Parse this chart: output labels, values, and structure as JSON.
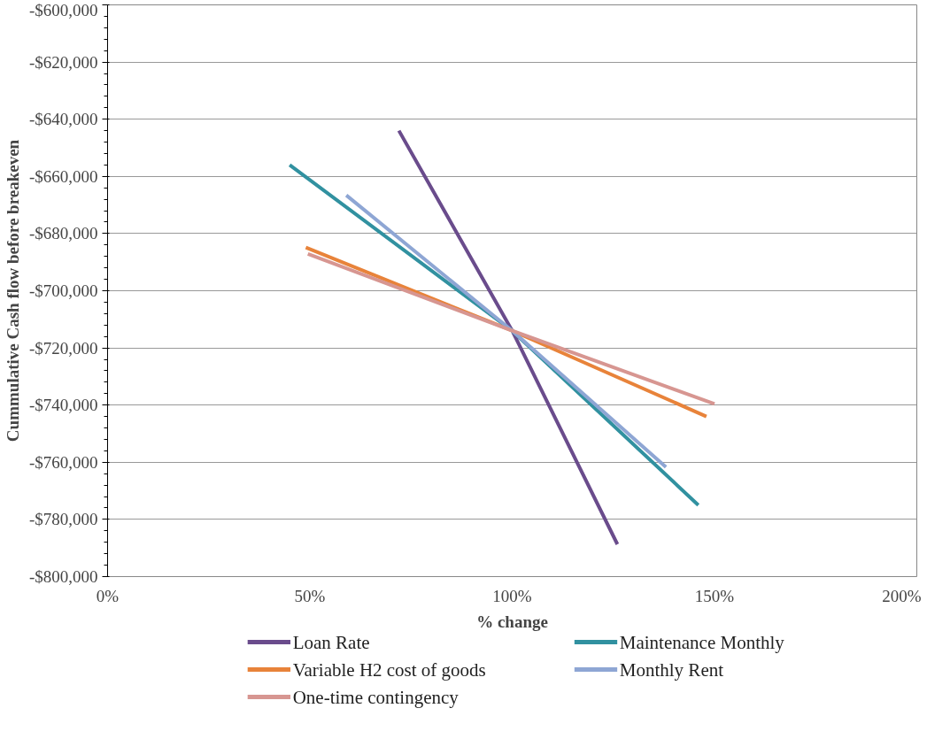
{
  "chart_data": {
    "type": "line",
    "xlabel": "% change",
    "ylabel": "Cummulative Cash flow before breakeven",
    "xlim": [
      0,
      2
    ],
    "xticks": [
      {
        "value": 0,
        "label": "0%"
      },
      {
        "value": 0.5,
        "label": "50%"
      },
      {
        "value": 1,
        "label": "100%"
      },
      {
        "value": 1.5,
        "label": "150%"
      },
      {
        "value": 2,
        "label": "200%"
      }
    ],
    "ylim": [
      -800000,
      -600000
    ],
    "yticks": [
      {
        "value": -800000,
        "label": "-$800,000"
      },
      {
        "value": -780000,
        "label": "-$780,000"
      },
      {
        "value": -760000,
        "label": "-$760,000"
      },
      {
        "value": -740000,
        "label": "-$740,000"
      },
      {
        "value": -720000,
        "label": "-$720,000"
      },
      {
        "value": -700000,
        "label": "-$700,000"
      },
      {
        "value": -680000,
        "label": "-$680,000"
      },
      {
        "value": -660000,
        "label": "-$660,000"
      },
      {
        "value": -640000,
        "label": "-$640,000"
      },
      {
        "value": -620000,
        "label": "-$620,000"
      },
      {
        "value": -600000,
        "label": "-$600,000"
      }
    ],
    "grid": "y",
    "legend": "bottom",
    "marker": "none",
    "line_style": "solid",
    "series": [
      {
        "name": "Loan Rate",
        "color": "#6a4c8c",
        "x": [
          0.72,
          1.0,
          1.26
        ],
        "values": [
          -644000,
          -714000,
          -788700
        ]
      },
      {
        "name": "Maintenance Monthly",
        "color": "#3191a0",
        "x": [
          0.45,
          1.0,
          1.46
        ],
        "values": [
          -656000,
          -714000,
          -775000
        ]
      },
      {
        "name": "Variable H2 cost of goods",
        "color": "#e8833a",
        "x": [
          0.49,
          1.0,
          1.48
        ],
        "values": [
          -684900,
          -714000,
          -744000
        ]
      },
      {
        "name": "Monthly Rent",
        "color": "#8ea6d4",
        "x": [
          0.59,
          1.0,
          1.38
        ],
        "values": [
          -666600,
          -714000,
          -761700
        ]
      },
      {
        "name": "One-time contingency",
        "color": "#d79691",
        "x": [
          0.495,
          1.0,
          1.5
        ],
        "values": [
          -687100,
          -714000,
          -739600
        ]
      }
    ]
  }
}
